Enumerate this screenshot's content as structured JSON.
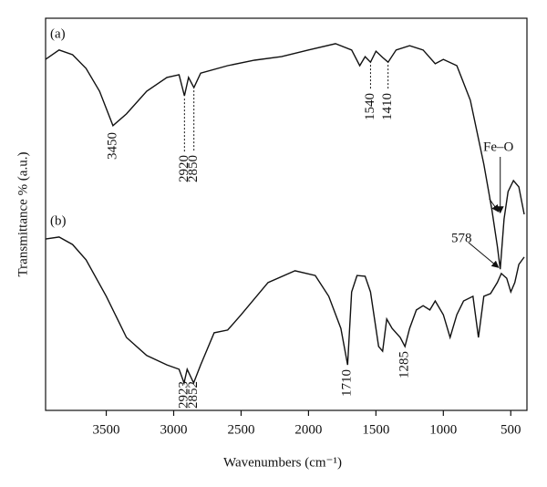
{
  "chart_data": {
    "type": "line",
    "x_label": "Wavenumbers (cm⁻¹)",
    "y_label": "Transmittance % (a.u.)",
    "xlim": [
      3950,
      380
    ],
    "ylim": [
      0,
      100
    ],
    "xticks": [
      3500,
      3000,
      2500,
      2000,
      1500,
      1000,
      500
    ],
    "series": [
      {
        "name": "(a)",
        "color": "#111111",
        "x": [
          3950,
          3850,
          3750,
          3650,
          3550,
          3450,
          3350,
          3200,
          3050,
          2960,
          2920,
          2890,
          2850,
          2800,
          2600,
          2400,
          2200,
          2000,
          1800,
          1680,
          1620,
          1580,
          1540,
          1500,
          1450,
          1410,
          1350,
          1250,
          1150,
          1060,
          1000,
          900,
          800,
          700,
          640,
          600,
          578,
          550,
          520,
          480,
          440,
          400
        ],
        "values": [
          89.5,
          91.9,
          90.7,
          87.2,
          81.4,
          72.6,
          75.6,
          81.4,
          84.9,
          85.6,
          80.2,
          84.9,
          82.3,
          86.0,
          87.9,
          89.3,
          90.2,
          91.9,
          93.5,
          91.9,
          87.9,
          90.2,
          88.8,
          91.6,
          90.0,
          88.8,
          91.9,
          93.0,
          91.9,
          88.4,
          89.5,
          87.9,
          79.1,
          62.8,
          51.2,
          41.9,
          36.0,
          48.8,
          55.8,
          58.6,
          57.0,
          50.0
        ],
        "peaks": [
          3450,
          2920,
          2850,
          1540,
          1410
        ]
      },
      {
        "name": "(b)",
        "color": "#111111",
        "x": [
          3950,
          3850,
          3750,
          3650,
          3500,
          3350,
          3200,
          3050,
          2960,
          2923,
          2900,
          2852,
          2800,
          2700,
          2600,
          2500,
          2300,
          2100,
          1950,
          1850,
          1760,
          1710,
          1680,
          1640,
          1580,
          1540,
          1480,
          1450,
          1420,
          1380,
          1320,
          1285,
          1250,
          1200,
          1150,
          1100,
          1060,
          1000,
          950,
          900,
          850,
          780,
          740,
          700,
          650,
          600,
          570,
          530,
          500,
          470,
          440,
          400
        ],
        "values": [
          43.7,
          44.2,
          42.3,
          38.4,
          29.1,
          18.6,
          14.0,
          11.6,
          10.5,
          7.0,
          10.5,
          7.0,
          11.6,
          19.8,
          20.5,
          24.4,
          32.6,
          35.6,
          34.4,
          29.1,
          20.9,
          11.6,
          30.2,
          34.4,
          34.2,
          30.2,
          16.3,
          15.1,
          23.3,
          20.9,
          18.6,
          16.3,
          20.9,
          25.6,
          26.7,
          25.6,
          27.9,
          24.4,
          18.6,
          24.4,
          27.9,
          29.1,
          18.6,
          29.1,
          29.8,
          32.6,
          34.9,
          33.7,
          30.2,
          32.6,
          37.2,
          39.1
        ],
        "peaks": [
          2923,
          2852,
          1710,
          1285
        ]
      }
    ],
    "fe_o_label": "Fe–O",
    "fe_o_peak": 578
  }
}
